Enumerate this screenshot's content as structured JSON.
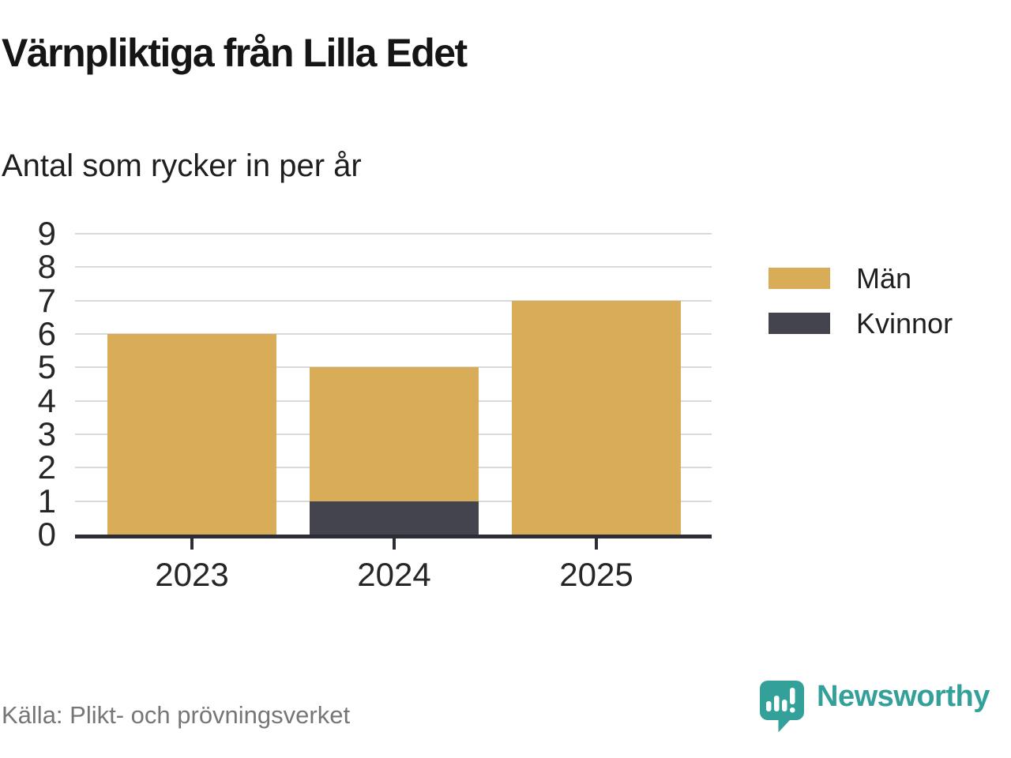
{
  "header": {
    "title": "Värnpliktiga från Lilla Edet",
    "subtitle": "Antal som rycker in per år"
  },
  "chart_data": {
    "type": "bar",
    "stacked": true,
    "categories": [
      "2023",
      "2024",
      "2025"
    ],
    "series": [
      {
        "name": "Män",
        "color": "#d9ac57",
        "values": [
          6,
          4,
          7
        ]
      },
      {
        "name": "Kvinnor",
        "color": "#44444e",
        "values": [
          0,
          1,
          0
        ]
      }
    ],
    "stack_totals": [
      6,
      5,
      7
    ],
    "title": "Värnpliktiga från Lilla Edet",
    "subtitle": "Antal som rycker in per år",
    "xlabel": "",
    "ylabel": "",
    "ylim": [
      0,
      9
    ],
    "yticks": [
      0,
      1,
      2,
      3,
      4,
      5,
      6,
      7,
      8,
      9
    ],
    "grid": true,
    "legend_position": "right"
  },
  "colors": {
    "men": "#d9ac57",
    "women": "#44444e",
    "gridline": "#d9d9d9",
    "axis": "#2d2d37",
    "source_text": "#767676",
    "brand_teal": "#34a09a"
  },
  "footer": {
    "source": "Källa: Plikt- och prövningsverket",
    "brand": {
      "name": "Newsworthy",
      "icon": "chart-speech-bubble-icon"
    }
  }
}
